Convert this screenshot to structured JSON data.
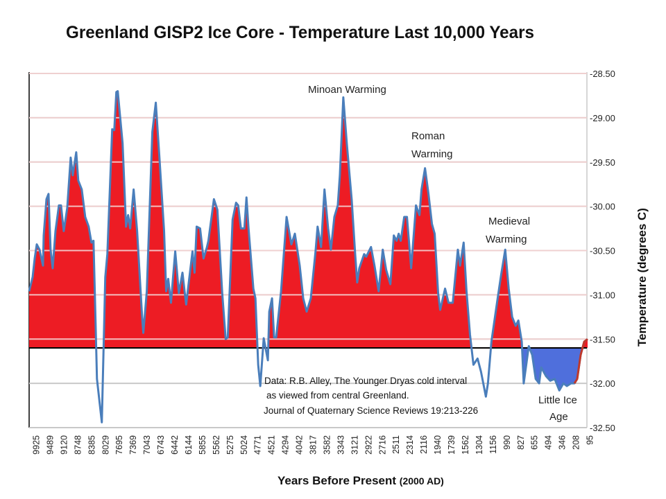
{
  "chart_data": {
    "type": "area",
    "title": "Greenland GISP2 Ice Core - Temperature  Last 10,000 Years",
    "xlabel": "Years Before Present",
    "xlabel_suffix": "(2000 AD)",
    "ylabel": "Temperature (degrees C)",
    "x_tick_labels": [
      "9925",
      "9489",
      "9120",
      "8748",
      "8385",
      "8029",
      "7695",
      "7369",
      "7043",
      "6743",
      "6442",
      "6144",
      "5855",
      "5562",
      "5275",
      "5024",
      "4771",
      "4521",
      "4294",
      "4042",
      "3817",
      "3582",
      "3343",
      "3121",
      "2922",
      "2716",
      "2511",
      "2314",
      "2116",
      "1940",
      "1739",
      "1562",
      "1304",
      "1156",
      "990",
      "827",
      "655",
      "494",
      "346",
      "208",
      "95"
    ],
    "x_reversed": true,
    "y_ticks": [
      -28.5,
      -29.0,
      -29.5,
      -30.0,
      -30.5,
      -31.0,
      -31.5,
      -32.0,
      -32.5
    ],
    "y_tick_labels": [
      "-28.50",
      "-29.00",
      "-29.50",
      "-30.00",
      "-30.50",
      "-31.00",
      "-31.50",
      "-32.00",
      "-32.50"
    ],
    "ylim": [
      -32.5,
      -28.5
    ],
    "y_axis_side": "right",
    "grid": true,
    "baseline": -31.6,
    "colors": {
      "line": "#4a7ebb",
      "warm_fill": "#ed1c24",
      "cold_fill": "#4f6fdc",
      "recent_line": "#c0392b",
      "baseline": "#000000",
      "grid": "#c8c8c8"
    },
    "cold_fill_from_year": 827,
    "recent_line_from_year": 200,
    "series": [
      {
        "points": [
          [
            10143,
            -30.96
          ],
          [
            10034,
            -30.8
          ],
          [
            9969,
            -30.59
          ],
          [
            9903,
            -30.43
          ],
          [
            9816,
            -30.49
          ],
          [
            9707,
            -30.67
          ],
          [
            9685,
            -30.33
          ],
          [
            9598,
            -29.92
          ],
          [
            9533,
            -29.86
          ],
          [
            9471,
            -30.49
          ],
          [
            9415,
            -30.7
          ],
          [
            9341,
            -30.28
          ],
          [
            9249,
            -29.99
          ],
          [
            9193,
            -29.99
          ],
          [
            9120,
            -30.28
          ],
          [
            9027,
            -30.02
          ],
          [
            8934,
            -29.45
          ],
          [
            8878,
            -29.65
          ],
          [
            8785,
            -29.39
          ],
          [
            8730,
            -29.71
          ],
          [
            8639,
            -29.81
          ],
          [
            8548,
            -30.12
          ],
          [
            8457,
            -30.23
          ],
          [
            8385,
            -30.41
          ],
          [
            8332,
            -30.39
          ],
          [
            8278,
            -31.32
          ],
          [
            8243,
            -31.95
          ],
          [
            8118,
            -32.44
          ],
          [
            8029,
            -30.8
          ],
          [
            7979,
            -30.54
          ],
          [
            7862,
            -29.13
          ],
          [
            7812,
            -29.14
          ],
          [
            7762,
            -28.71
          ],
          [
            7728,
            -28.7
          ],
          [
            7679,
            -28.95
          ],
          [
            7613,
            -29.29
          ],
          [
            7532,
            -30.23
          ],
          [
            7483,
            -30.1
          ],
          [
            7434,
            -30.25
          ],
          [
            7353,
            -29.81
          ],
          [
            7271,
            -30.28
          ],
          [
            7157,
            -31.22
          ],
          [
            7125,
            -31.43
          ],
          [
            7043,
            -30.96
          ],
          [
            6923,
            -29.16
          ],
          [
            6848,
            -28.83
          ],
          [
            6773,
            -29.42
          ],
          [
            6668,
            -30.28
          ],
          [
            6623,
            -30.96
          ],
          [
            6578,
            -30.82
          ],
          [
            6518,
            -31.09
          ],
          [
            6473,
            -30.8
          ],
          [
            6426,
            -30.51
          ],
          [
            6348,
            -30.98
          ],
          [
            6270,
            -30.75
          ],
          [
            6191,
            -31.11
          ],
          [
            6057,
            -30.51
          ],
          [
            6014,
            -30.75
          ],
          [
            5970,
            -30.23
          ],
          [
            5898,
            -30.25
          ],
          [
            5826,
            -30.59
          ],
          [
            5753,
            -30.46
          ],
          [
            5723,
            -30.39
          ],
          [
            5606,
            -29.92
          ],
          [
            5533,
            -30.04
          ],
          [
            5433,
            -30.98
          ],
          [
            5361,
            -31.5
          ],
          [
            5318,
            -31.48
          ],
          [
            5225,
            -30.15
          ],
          [
            5162,
            -29.96
          ],
          [
            5124,
            -29.99
          ],
          [
            5074,
            -30.25
          ],
          [
            5011,
            -30.25
          ],
          [
            4973,
            -29.9
          ],
          [
            4935,
            -30.25
          ],
          [
            4847,
            -30.93
          ],
          [
            4809,
            -31.04
          ],
          [
            4759,
            -31.79
          ],
          [
            4721,
            -32.03
          ],
          [
            4659,
            -31.49
          ],
          [
            4584,
            -31.74
          ],
          [
            4559,
            -31.19
          ],
          [
            4510,
            -31.04
          ],
          [
            4476,
            -31.48
          ],
          [
            4442,
            -31.48
          ],
          [
            4362,
            -30.96
          ],
          [
            4269,
            -30.12
          ],
          [
            4181,
            -30.43
          ],
          [
            4118,
            -30.31
          ],
          [
            4031,
            -30.67
          ],
          [
            3974,
            -31.04
          ],
          [
            3918,
            -31.19
          ],
          [
            3851,
            -31.04
          ],
          [
            3772,
            -30.51
          ],
          [
            3737,
            -30.23
          ],
          [
            3678,
            -30.46
          ],
          [
            3620,
            -29.81
          ],
          [
            3558,
            -30.25
          ],
          [
            3510,
            -30.49
          ],
          [
            3450,
            -30.12
          ],
          [
            3391,
            -29.99
          ],
          [
            3355,
            -29.65
          ],
          [
            3299,
            -28.77
          ],
          [
            3243,
            -29.29
          ],
          [
            3165,
            -29.92
          ],
          [
            3110,
            -30.54
          ],
          [
            3081,
            -30.86
          ],
          [
            3051,
            -30.7
          ],
          [
            2981,
            -30.54
          ],
          [
            2951,
            -30.57
          ],
          [
            2881,
            -30.46
          ],
          [
            2829,
            -30.67
          ],
          [
            2767,
            -30.96
          ],
          [
            2706,
            -30.49
          ],
          [
            2655,
            -30.72
          ],
          [
            2593,
            -30.88
          ],
          [
            2542,
            -30.33
          ],
          [
            2501,
            -30.39
          ],
          [
            2472,
            -30.31
          ],
          [
            2442,
            -30.39
          ],
          [
            2393,
            -30.12
          ],
          [
            2354,
            -30.12
          ],
          [
            2294,
            -30.7
          ],
          [
            2225,
            -29.99
          ],
          [
            2175,
            -30.1
          ],
          [
            2146,
            -29.81
          ],
          [
            2098,
            -29.57
          ],
          [
            2054,
            -29.86
          ],
          [
            2010,
            -30.2
          ],
          [
            1975,
            -30.31
          ],
          [
            1930,
            -30.98
          ],
          [
            1900,
            -31.17
          ],
          [
            1829,
            -30.93
          ],
          [
            1779,
            -31.09
          ],
          [
            1720,
            -31.09
          ],
          [
            1655,
            -30.49
          ],
          [
            1627,
            -30.67
          ],
          [
            1581,
            -30.41
          ],
          [
            1536,
            -30.96
          ],
          [
            1471,
            -31.45
          ],
          [
            1407,
            -31.79
          ],
          [
            1330,
            -31.72
          ],
          [
            1282,
            -31.87
          ],
          [
            1230,
            -32.15
          ],
          [
            1208,
            -32.0
          ],
          [
            1171,
            -31.53
          ],
          [
            1098,
            -31.04
          ],
          [
            1057,
            -30.78
          ],
          [
            1007,
            -30.49
          ],
          [
            966,
            -30.93
          ],
          [
            925,
            -31.25
          ],
          [
            884,
            -31.35
          ],
          [
            852,
            -31.29
          ],
          [
            811,
            -31.53
          ],
          [
            787,
            -32.0
          ],
          [
            724,
            -31.58
          ],
          [
            681,
            -31.68
          ],
          [
            639,
            -31.95
          ],
          [
            599,
            -32.0
          ],
          [
            575,
            -31.82
          ],
          [
            518,
            -31.92
          ],
          [
            472,
            -31.97
          ],
          [
            424,
            -31.95
          ],
          [
            375,
            -32.08
          ],
          [
            332,
            -32.0
          ],
          [
            298,
            -32.03
          ],
          [
            256,
            -32.0
          ],
          [
            222,
            -32.0
          ],
          [
            197,
            -31.95
          ],
          [
            169,
            -31.68
          ],
          [
            140,
            -31.53
          ],
          [
            112,
            -31.5
          ]
        ]
      }
    ],
    "annotations": {
      "minoan": "Minoan Warming",
      "roman_1": "Roman",
      "roman_2": "Warming",
      "medieval_1": "Medieval",
      "medieval_2": "Warming",
      "lia_1": "Little Ice",
      "lia_2": "Age",
      "source_1": "Data: R.B. Alley,  The Younger Dryas cold interval",
      "source_2": "as viewed from central Greenland.",
      "source_3": "Journal of Quaternary  Science Reviews 19:213-226"
    }
  }
}
